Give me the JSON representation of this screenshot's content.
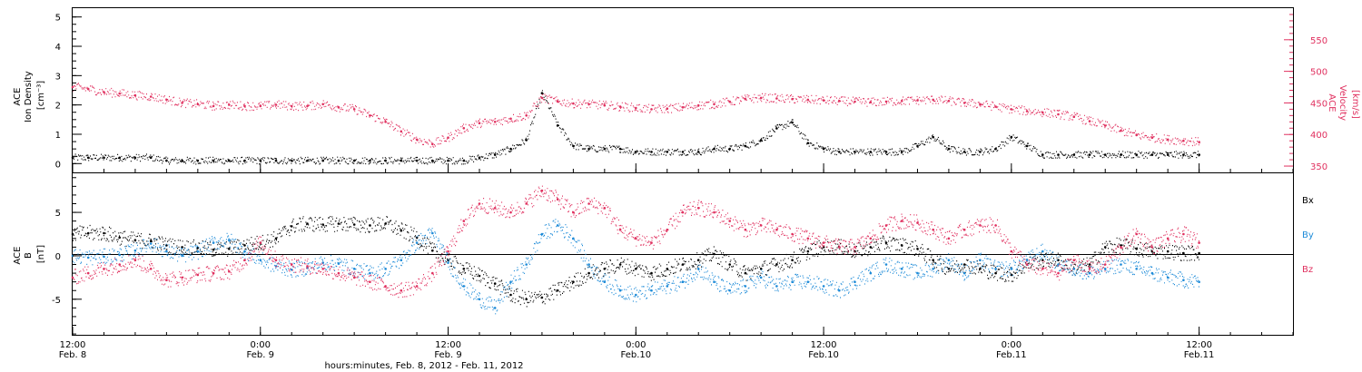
{
  "colors": {
    "black": "#000000",
    "blue": "#1e8bd8",
    "pink": "#e0305f"
  },
  "chart_data": [
    {
      "type": "scatter",
      "ylabel_left": [
        "ACE",
        "Ion Density"
      ],
      "ylabel_left_unit": "[cm⁻³]",
      "ylabel_right": [
        "ACE",
        "Velocity"
      ],
      "ylabel_right_unit": "[km/s]",
      "ylim_left": [
        -0.3,
        5.3
      ],
      "ylim_right": [
        340,
        600
      ],
      "left_ticks": [
        "0",
        "1",
        "2",
        "3",
        "4",
        "5"
      ],
      "right_ticks": [
        "350",
        "400",
        "450",
        "500",
        "550"
      ],
      "grid": false,
      "series": [
        {
          "axis": "left",
          "color": "black",
          "x": [
            0,
            1,
            2,
            3,
            4,
            5,
            6,
            7,
            8,
            9,
            10,
            11,
            12,
            13,
            14,
            15,
            16,
            17,
            18,
            19,
            20,
            21,
            22,
            23,
            24,
            25,
            26,
            27,
            28,
            29,
            30,
            31,
            32,
            33,
            34,
            35,
            36,
            37,
            38,
            39,
            40,
            41,
            42,
            43,
            44,
            45,
            46,
            47,
            48,
            49,
            50,
            51,
            52,
            53,
            54,
            55,
            56,
            57,
            58,
            59,
            60,
            61,
            62,
            63,
            64,
            65,
            66,
            67,
            68,
            69,
            70,
            71,
            72
          ],
          "y": [
            0.2,
            0.2,
            0.2,
            0.2,
            0.2,
            0.2,
            0.1,
            0.1,
            0.1,
            0.1,
            0.1,
            0.1,
            0.1,
            0.1,
            0.1,
            0.1,
            0.1,
            0.1,
            0.1,
            0.1,
            0.1,
            0.1,
            0.1,
            0.1,
            0.1,
            0.1,
            0.2,
            0.3,
            0.5,
            0.8,
            2.4,
            1.3,
            0.6,
            0.5,
            0.5,
            0.5,
            0.4,
            0.4,
            0.4,
            0.4,
            0.4,
            0.5,
            0.5,
            0.6,
            0.8,
            1.2,
            1.4,
            0.7,
            0.5,
            0.4,
            0.4,
            0.4,
            0.4,
            0.4,
            0.6,
            0.9,
            0.5,
            0.4,
            0.4,
            0.5,
            0.9,
            0.6,
            0.3,
            0.3,
            0.3,
            0.3,
            0.3,
            0.3,
            0.3,
            0.3,
            0.3,
            0.3,
            0.3
          ]
        },
        {
          "axis": "right",
          "color": "pink",
          "x": [
            0,
            1,
            2,
            3,
            4,
            5,
            6,
            7,
            8,
            9,
            10,
            11,
            12,
            13,
            14,
            15,
            16,
            17,
            18,
            19,
            20,
            21,
            22,
            23,
            24,
            25,
            26,
            27,
            28,
            29,
            30,
            31,
            32,
            33,
            34,
            35,
            36,
            37,
            38,
            39,
            40,
            41,
            42,
            43,
            44,
            45,
            46,
            47,
            48,
            49,
            50,
            51,
            52,
            53,
            54,
            55,
            56,
            57,
            58,
            59,
            60,
            61,
            62,
            63,
            64,
            65,
            66,
            67,
            68,
            69,
            70,
            71,
            72
          ],
          "y": [
            475,
            472,
            467,
            465,
            462,
            460,
            455,
            450,
            448,
            445,
            447,
            445,
            445,
            447,
            445,
            445,
            448,
            443,
            440,
            430,
            420,
            405,
            392,
            385,
            395,
            410,
            418,
            420,
            425,
            430,
            458,
            452,
            449,
            448,
            446,
            444,
            442,
            440,
            441,
            443,
            446,
            448,
            452,
            456,
            458,
            457,
            456,
            455,
            454,
            453,
            452,
            451,
            452,
            453,
            454,
            455,
            453,
            450,
            448,
            444,
            440,
            437,
            435,
            432,
            428,
            421,
            414,
            406,
            399,
            395,
            392,
            390,
            388
          ]
        }
      ]
    },
    {
      "type": "scatter",
      "ylabel": [
        "ACE",
        "B"
      ],
      "ylabel_unit": "[nT]",
      "ylim": [
        -9.2,
        9.5
      ],
      "ticks": [
        "-5",
        "0",
        "5"
      ],
      "grid": false,
      "legend": [
        "Bx",
        "By",
        "Bz"
      ],
      "legend_placement": "right",
      "series": [
        {
          "name": "Bx",
          "color": "black",
          "x": [
            0,
            1,
            2,
            3,
            4,
            5,
            6,
            7,
            8,
            9,
            10,
            11,
            12,
            13,
            14,
            15,
            16,
            17,
            18,
            19,
            20,
            21,
            22,
            23,
            24,
            25,
            26,
            27,
            28,
            29,
            30,
            31,
            32,
            33,
            34,
            35,
            36,
            37,
            38,
            39,
            40,
            41,
            42,
            43,
            44,
            45,
            46,
            47,
            48,
            49,
            50,
            51,
            52,
            53,
            54,
            55,
            56,
            57,
            58,
            59,
            60,
            61,
            62,
            63,
            64,
            65,
            66,
            67,
            68,
            69,
            70,
            71,
            72
          ],
          "y": [
            2.5,
            2.6,
            2.6,
            2.1,
            1.8,
            1.7,
            1.2,
            1.0,
            0.9,
            0.7,
            0.8,
            1.2,
            1.5,
            2.0,
            3.4,
            3.7,
            3.6,
            3.7,
            3.6,
            3.5,
            3.7,
            2.9,
            2.1,
            0.6,
            -0.5,
            -1.5,
            -2.3,
            -3.2,
            -4.5,
            -5.0,
            -4.8,
            -4.0,
            -3.0,
            -2.0,
            -1.5,
            -1.0,
            -1.5,
            -2.0,
            -1.5,
            -1.0,
            -0.5,
            0.2,
            -1.0,
            -2.0,
            -1.5,
            -1.0,
            -0.5,
            0.5,
            1.0,
            1.0,
            0.5,
            1.0,
            1.5,
            1.2,
            0.8,
            -0.5,
            -1.5,
            -1.0,
            -1.5,
            -2.0,
            -2.2,
            -1.0,
            -0.5,
            -0.5,
            -1.5,
            -1.0,
            1.0,
            1.2,
            0.8,
            0.5,
            0.5,
            0.3,
            0.3
          ]
        },
        {
          "name": "By",
          "color": "blue",
          "x": [
            0,
            1,
            2,
            3,
            4,
            5,
            6,
            7,
            8,
            9,
            10,
            11,
            12,
            13,
            14,
            15,
            16,
            17,
            18,
            19,
            20,
            21,
            22,
            23,
            24,
            25,
            26,
            27,
            28,
            29,
            30,
            31,
            32,
            33,
            34,
            35,
            36,
            37,
            38,
            39,
            40,
            41,
            42,
            43,
            44,
            45,
            46,
            47,
            48,
            49,
            50,
            51,
            52,
            53,
            54,
            55,
            56,
            57,
            58,
            59,
            60,
            61,
            62,
            63,
            64,
            65,
            66,
            67,
            68,
            69,
            70,
            71,
            72
          ],
          "y": [
            0.0,
            -0.2,
            -0.1,
            0.1,
            0.6,
            1.4,
            0.5,
            0.0,
            0.5,
            1.5,
            1.8,
            0.5,
            -0.5,
            -1.2,
            -1.6,
            -1.4,
            -0.8,
            -0.9,
            -1.5,
            -2.0,
            -1.5,
            -0.5,
            1.5,
            2.6,
            -0.8,
            -3.5,
            -5.0,
            -6.0,
            -3.0,
            -1.0,
            2.5,
            3.5,
            2.0,
            -1.0,
            -3.0,
            -4.0,
            -4.5,
            -4.0,
            -3.5,
            -3.0,
            -1.5,
            -3.0,
            -4.0,
            -3.5,
            -2.5,
            -3.5,
            -3.0,
            -3.0,
            -3.5,
            -4.0,
            -3.0,
            -2.0,
            -1.0,
            -1.5,
            -2.0,
            -1.5,
            -0.5,
            -2.0,
            -0.5,
            -1.5,
            -1.5,
            -0.5,
            0.5,
            -1.0,
            -1.5,
            -2.0,
            -1.5,
            -1.0,
            -1.5,
            -2.0,
            -2.5,
            -2.8,
            -3.0
          ]
        },
        {
          "name": "Bz",
          "color": "pink",
          "x": [
            0,
            1,
            2,
            3,
            4,
            5,
            6,
            7,
            8,
            9,
            10,
            11,
            12,
            13,
            14,
            15,
            16,
            17,
            18,
            19,
            20,
            21,
            22,
            23,
            24,
            25,
            26,
            27,
            28,
            29,
            30,
            31,
            32,
            33,
            34,
            35,
            36,
            37,
            38,
            39,
            40,
            41,
            42,
            43,
            44,
            45,
            46,
            47,
            48,
            49,
            50,
            51,
            52,
            53,
            54,
            55,
            56,
            57,
            58,
            59,
            60,
            61,
            62,
            63,
            64,
            65,
            66,
            67,
            68,
            69,
            70,
            71,
            72
          ],
          "y": [
            -2.5,
            -2.0,
            -1.5,
            -1.0,
            -0.5,
            -1.5,
            -2.8,
            -2.5,
            -2.2,
            -2.0,
            -1.8,
            -0.5,
            1.5,
            -0.5,
            -1.0,
            -1.2,
            -1.5,
            -2.0,
            -2.5,
            -3.0,
            -3.5,
            -4.0,
            -3.5,
            -2.0,
            0.5,
            4.0,
            6.0,
            5.5,
            5.0,
            6.0,
            7.5,
            6.5,
            5.0,
            6.0,
            5.5,
            3.0,
            2.0,
            1.5,
            3.0,
            5.0,
            5.5,
            5.0,
            4.0,
            3.0,
            3.5,
            3.0,
            2.5,
            2.0,
            1.5,
            1.0,
            1.0,
            2.0,
            3.5,
            4.0,
            3.8,
            3.0,
            2.0,
            3.0,
            3.5,
            3.5,
            0.5,
            -1.0,
            -1.5,
            -2.0,
            -0.5,
            -1.5,
            -1.0,
            1.0,
            2.5,
            1.0,
            2.0,
            2.5,
            1.5
          ]
        }
      ]
    }
  ],
  "x_axis": {
    "xlim": [
      0,
      78
    ],
    "tick_hours": [
      0,
      12,
      24,
      36,
      48,
      60,
      72
    ],
    "ticks": [
      {
        "time": "12:00",
        "date": "Feb. 8"
      },
      {
        "time": "0:00",
        "date": "Feb. 9"
      },
      {
        "time": "12:00",
        "date": "Feb. 9"
      },
      {
        "time": "0:00",
        "date": "Feb.10"
      },
      {
        "time": "12:00",
        "date": "Feb.10"
      },
      {
        "time": "0:00",
        "date": "Feb.11"
      },
      {
        "time": "12:00",
        "date": "Feb.11"
      }
    ],
    "label": "hours:minutes, Feb.  8, 2012 - Feb. 11, 2012"
  }
}
